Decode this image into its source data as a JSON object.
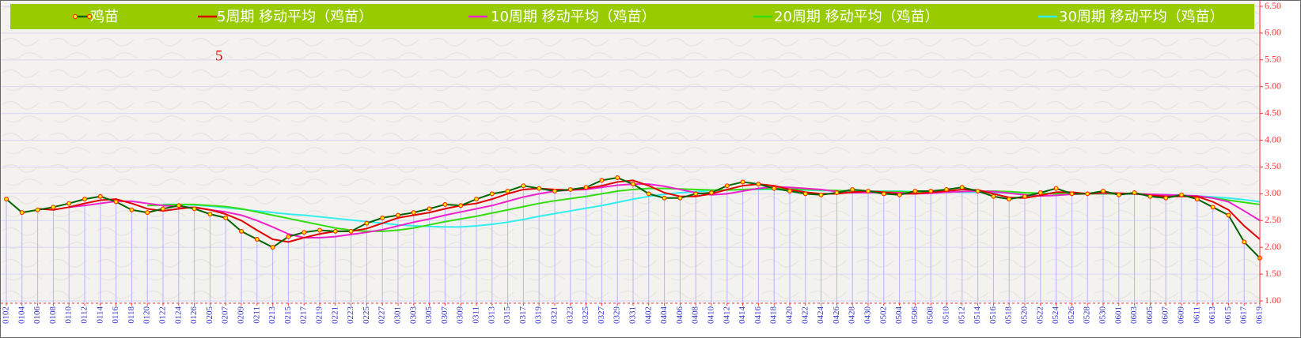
{
  "chart_data": {
    "type": "line",
    "annotation": "5",
    "legend": "top",
    "grid": true,
    "yaxis_position": "right",
    "drop_lines": true,
    "drop_line_color": "#b4b4ff",
    "marker_color": "#ff3300",
    "categories": [
      "0102",
      "0104",
      "0106",
      "0108",
      "0110",
      "0112",
      "0114",
      "0116",
      "0118",
      "0120",
      "0122",
      "0124",
      "0126",
      "0205",
      "0207",
      "0209",
      "0211",
      "0213",
      "0215",
      "0217",
      "0219",
      "0221",
      "0223",
      "0225",
      "0227",
      "0301",
      "0303",
      "0305",
      "0307",
      "0309",
      "0311",
      "0313",
      "0315",
      "0317",
      "0319",
      "0321",
      "0323",
      "0325",
      "0327",
      "0329",
      "0331",
      "0402",
      "0404",
      "0406",
      "0408",
      "0410",
      "0412",
      "0414",
      "0416",
      "0418",
      "0420",
      "0422",
      "0424",
      "0426",
      "0428",
      "0430",
      "0502",
      "0504",
      "0506",
      "0508",
      "0510",
      "0512",
      "0514",
      "0516",
      "0518",
      "0520",
      "0522",
      "0524",
      "0526",
      "0528",
      "0530",
      "0601",
      "0603",
      "0605",
      "0607",
      "0609",
      "0611",
      "0613",
      "0615",
      "0617",
      "0619"
    ],
    "series": [
      {
        "name": "鸡苗",
        "color": "#006400",
        "markers": true,
        "values": [
          2.9,
          2.65,
          2.7,
          2.75,
          2.82,
          2.9,
          2.95,
          2.85,
          2.7,
          2.65,
          2.72,
          2.78,
          2.72,
          2.62,
          2.55,
          2.3,
          2.15,
          2.0,
          2.2,
          2.28,
          2.32,
          2.3,
          2.3,
          2.45,
          2.55,
          2.6,
          2.65,
          2.72,
          2.8,
          2.78,
          2.9,
          3.0,
          3.05,
          3.15,
          3.1,
          3.05,
          3.08,
          3.12,
          3.25,
          3.3,
          3.18,
          3.0,
          2.92,
          2.92,
          3.0,
          3.02,
          3.15,
          3.22,
          3.18,
          3.1,
          3.05,
          3.0,
          2.98,
          3.02,
          3.08,
          3.05,
          3.0,
          2.98,
          3.05,
          3.05,
          3.08,
          3.12,
          3.05,
          2.95,
          2.9,
          2.95,
          3.02,
          3.1,
          3.0,
          3.0,
          3.05,
          2.98,
          3.02,
          2.95,
          2.92,
          2.98,
          2.9,
          2.75,
          2.6,
          2.1,
          1.8
        ]
      },
      {
        "name": "5周期 移动平均（鸡苗）",
        "color": "#e00000",
        "values": [
          null,
          null,
          2.72,
          2.7,
          2.75,
          2.82,
          2.88,
          2.9,
          2.82,
          2.72,
          2.68,
          2.72,
          2.75,
          2.7,
          2.62,
          2.5,
          2.32,
          2.15,
          2.1,
          2.18,
          2.25,
          2.3,
          2.3,
          2.35,
          2.45,
          2.55,
          2.6,
          2.65,
          2.72,
          2.78,
          2.82,
          2.9,
          3.0,
          3.08,
          3.1,
          3.08,
          3.07,
          3.1,
          3.15,
          3.22,
          3.25,
          3.15,
          3.02,
          2.95,
          2.95,
          3.0,
          3.08,
          3.15,
          3.18,
          3.15,
          3.08,
          3.03,
          3.0,
          3.0,
          3.03,
          3.05,
          3.03,
          3.0,
          3.0,
          3.03,
          3.05,
          3.08,
          3.07,
          3.0,
          2.93,
          2.92,
          2.97,
          3.03,
          3.03,
          3.0,
          3.02,
          3.01,
          3.0,
          2.97,
          2.95,
          2.95,
          2.95,
          2.85,
          2.7,
          2.4,
          2.15
        ]
      },
      {
        "name": "10周期 移动平均（鸡苗）",
        "color": "#ee22cc",
        "values": [
          null,
          null,
          null,
          null,
          2.75,
          2.78,
          2.82,
          2.86,
          2.86,
          2.82,
          2.78,
          2.76,
          2.74,
          2.7,
          2.66,
          2.6,
          2.5,
          2.38,
          2.25,
          2.18,
          2.18,
          2.2,
          2.24,
          2.28,
          2.33,
          2.4,
          2.47,
          2.53,
          2.6,
          2.66,
          2.72,
          2.78,
          2.86,
          2.94,
          3.0,
          3.05,
          3.07,
          3.08,
          3.12,
          3.16,
          3.18,
          3.18,
          3.14,
          3.08,
          3.02,
          2.98,
          3.0,
          3.05,
          3.1,
          3.13,
          3.12,
          3.1,
          3.08,
          3.04,
          3.02,
          3.02,
          3.03,
          3.02,
          3.0,
          3.01,
          3.03,
          3.04,
          3.05,
          3.04,
          3.01,
          2.98,
          2.96,
          2.97,
          2.99,
          3.0,
          3.01,
          3.01,
          3.0,
          2.99,
          2.98,
          2.97,
          2.96,
          2.92,
          2.85,
          2.68,
          2.5
        ]
      },
      {
        "name": "20周期 移动平均（鸡苗）",
        "color": "#33dd11",
        "values": [
          null,
          null,
          null,
          null,
          null,
          null,
          null,
          null,
          null,
          2.78,
          2.79,
          2.8,
          2.8,
          2.78,
          2.76,
          2.72,
          2.66,
          2.6,
          2.54,
          2.48,
          2.42,
          2.36,
          2.32,
          2.3,
          2.3,
          2.32,
          2.36,
          2.42,
          2.48,
          2.53,
          2.58,
          2.64,
          2.7,
          2.76,
          2.82,
          2.87,
          2.91,
          2.95,
          3.0,
          3.05,
          3.08,
          3.1,
          3.1,
          3.09,
          3.08,
          3.07,
          3.07,
          3.08,
          3.09,
          3.1,
          3.09,
          3.08,
          3.07,
          3.06,
          3.05,
          3.04,
          3.04,
          3.04,
          3.03,
          3.03,
          3.03,
          3.04,
          3.05,
          3.05,
          3.04,
          3.02,
          3.01,
          3.0,
          3.0,
          3.0,
          3.0,
          3.0,
          3.0,
          2.99,
          2.98,
          2.97,
          2.95,
          2.92,
          2.88,
          2.84,
          2.8
        ]
      },
      {
        "name": "30周期 移动平均（鸡苗）",
        "color": "#33eeee",
        "values": [
          null,
          null,
          null,
          null,
          null,
          null,
          null,
          null,
          null,
          null,
          2.8,
          2.8,
          2.79,
          2.77,
          2.74,
          2.71,
          2.68,
          2.65,
          2.62,
          2.6,
          2.57,
          2.54,
          2.51,
          2.48,
          2.45,
          2.42,
          2.4,
          2.39,
          2.38,
          2.38,
          2.4,
          2.43,
          2.47,
          2.52,
          2.58,
          2.63,
          2.68,
          2.73,
          2.78,
          2.84,
          2.9,
          2.95,
          2.99,
          3.02,
          3.04,
          3.06,
          3.07,
          3.08,
          3.08,
          3.08,
          3.07,
          3.07,
          3.06,
          3.06,
          3.05,
          3.05,
          3.05,
          3.05,
          3.04,
          3.04,
          3.04,
          3.03,
          3.03,
          3.02,
          3.02,
          3.02,
          3.01,
          3.01,
          3.0,
          3.0,
          3.0,
          3.0,
          2.99,
          2.99,
          2.98,
          2.97,
          2.96,
          2.94,
          2.92,
          2.89,
          2.85
        ]
      }
    ],
    "ylim": [
      1.0,
      6.5
    ],
    "yticks": [
      {
        "value": 1.0,
        "label": "1.00"
      },
      {
        "value": 1.5,
        "label": "1.50"
      },
      {
        "value": 2.0,
        "label": "2.00"
      },
      {
        "value": 2.5,
        "label": "2.50"
      },
      {
        "value": 3.0,
        "label": "3.00"
      },
      {
        "value": 3.5,
        "label": "3.50"
      },
      {
        "value": 4.0,
        "label": "4.00"
      },
      {
        "value": 4.5,
        "label": "4.50"
      },
      {
        "value": 5.0,
        "label": "5.00"
      },
      {
        "value": 5.5,
        "label": "5.50"
      },
      {
        "value": 6.0,
        "label": "6.00"
      },
      {
        "value": 6.5,
        "label": "6.50"
      }
    ]
  }
}
